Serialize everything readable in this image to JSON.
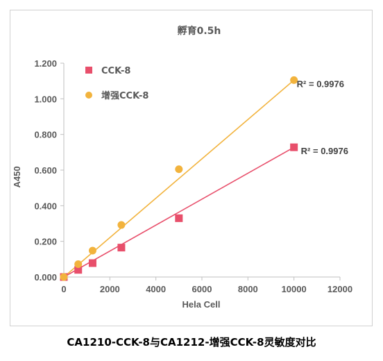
{
  "caption": "CA1210-CCK-8与CA1212-增强CCK-8灵敏度对比",
  "colors": {
    "cck8": "#e84f6b",
    "enhanced": "#f2b33d",
    "axis": "#bfbfbf",
    "text": "#595959"
  },
  "chart_data": {
    "type": "scatter",
    "title": "孵育0.5h",
    "xlabel": "Hela Cell",
    "ylabel": "A450",
    "xlim": [
      0,
      12000
    ],
    "ylim": [
      0,
      1.2
    ],
    "xticks": [
      "0",
      "2000",
      "4000",
      "6000",
      "8000",
      "10000",
      "12000"
    ],
    "yticks": [
      "0.000",
      "0.200",
      "0.400",
      "0.600",
      "0.800",
      "1.000",
      "1.200"
    ],
    "grid": false,
    "legend_position": "top-left",
    "series": [
      {
        "name": "CCK-8",
        "marker": "square",
        "color": "#e84f6b",
        "x": [
          0,
          625,
          1250,
          2500,
          5000,
          10000
        ],
        "y": [
          0.0,
          0.04,
          0.078,
          0.165,
          0.33,
          0.728
        ],
        "trendline": {
          "x": [
            0,
            10000
          ],
          "y": [
            0.0,
            0.728
          ]
        },
        "r2_label": "R² = 0.9976"
      },
      {
        "name": "增强CCK-8",
        "marker": "circle",
        "color": "#f2b33d",
        "x": [
          0,
          625,
          1250,
          2500,
          5000,
          10000
        ],
        "y": [
          0.0,
          0.072,
          0.148,
          0.292,
          0.605,
          1.105
        ],
        "trendline": {
          "x": [
            0,
            10000
          ],
          "y": [
            0.0,
            1.105
          ]
        },
        "r2_label": "R² = 0.9976"
      }
    ]
  }
}
